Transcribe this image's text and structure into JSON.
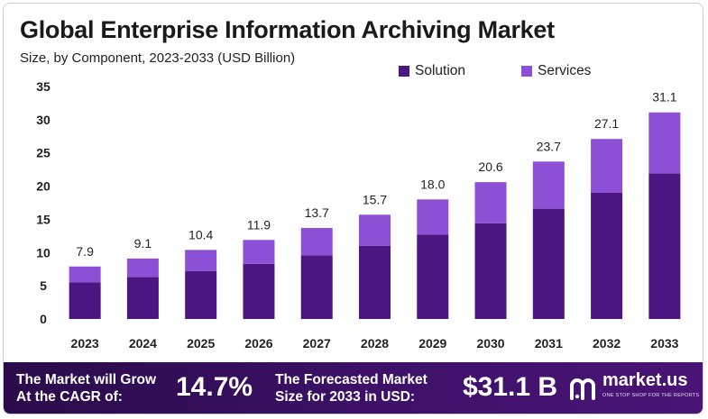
{
  "title": "Global Enterprise Information Archiving Market",
  "subtitle": "Size, by Component, 2023-2033 (USD Billion)",
  "colors": {
    "solution": "#4c1682",
    "services": "#8c4fd6",
    "footer": "#3a1065"
  },
  "legend": {
    "solution": "Solution",
    "services": "Services"
  },
  "chart_data": {
    "type": "bar",
    "stacked": true,
    "categories": [
      "2023",
      "2024",
      "2025",
      "2026",
      "2027",
      "2028",
      "2029",
      "2030",
      "2031",
      "2032",
      "2033"
    ],
    "series": [
      {
        "name": "Solution",
        "values": [
          5.5,
          6.3,
          7.2,
          8.3,
          9.6,
          11.0,
          12.7,
          14.4,
          16.6,
          19.0,
          21.9
        ]
      },
      {
        "name": "Services",
        "values": [
          2.4,
          2.8,
          3.2,
          3.6,
          4.1,
          4.7,
          5.3,
          6.2,
          7.1,
          8.1,
          9.2
        ]
      }
    ],
    "totals": [
      "7.9",
      "9.1",
      "10.4",
      "11.9",
      "13.7",
      "15.7",
      "18.0",
      "20.6",
      "23.7",
      "27.1",
      "31.1"
    ],
    "ylim": [
      0,
      35
    ],
    "yticks": [
      "0",
      "5",
      "10",
      "15",
      "20",
      "25",
      "30",
      "35"
    ],
    "grid": false,
    "legend_position": "top-right"
  },
  "footer": {
    "cagr_text_line1": "The Market will Grow",
    "cagr_text_line2": "At the CAGR of:",
    "cagr_value": "14.7%",
    "forecast_text_line1": "The Forecasted Market",
    "forecast_text_line2": "Size for 2033 in USD:",
    "forecast_value": "$31.1 B",
    "brand_name": "market.us",
    "brand_tagline": "ONE STOP SHOP FOR THE REPORTS",
    "brand_icon": "market-us-logo-icon"
  }
}
